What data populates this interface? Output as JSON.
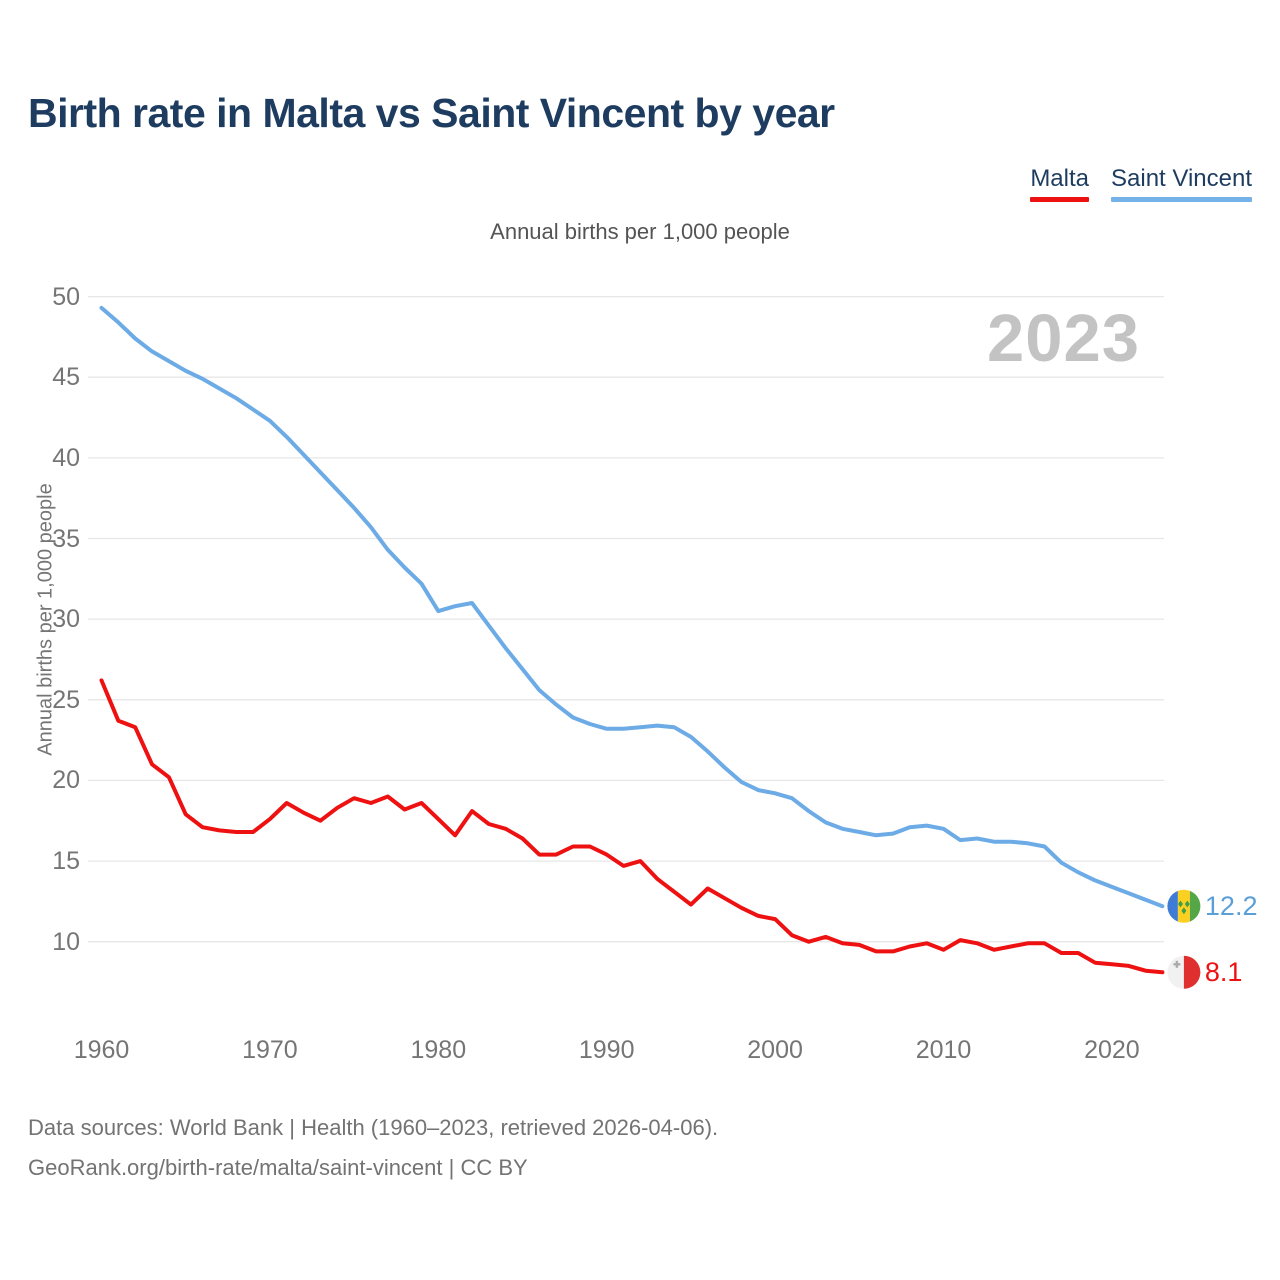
{
  "header": {
    "title": "Birth rate in Malta vs Saint Vincent by year",
    "subtitle": "Annual births per 1,000 people"
  },
  "legend": {
    "items": [
      {
        "label": "Malta",
        "color": "#ee1111"
      },
      {
        "label": "Saint Vincent",
        "color": "#74b2e8"
      }
    ]
  },
  "watermark": "2023",
  "chart_data": {
    "type": "line",
    "title": "Birth rate in Malta vs Saint Vincent by year",
    "subtitle": "Annual births per 1,000 people",
    "ylabel": "Annual births per 1,000 people",
    "xlabel": "",
    "x": [
      1960,
      1961,
      1962,
      1963,
      1964,
      1965,
      1966,
      1967,
      1968,
      1969,
      1970,
      1971,
      1972,
      1973,
      1974,
      1975,
      1976,
      1977,
      1978,
      1979,
      1980,
      1981,
      1982,
      1983,
      1984,
      1985,
      1986,
      1987,
      1988,
      1989,
      1990,
      1991,
      1992,
      1993,
      1994,
      1995,
      1996,
      1997,
      1998,
      1999,
      2000,
      2001,
      2002,
      2003,
      2004,
      2005,
      2006,
      2007,
      2008,
      2009,
      2010,
      2011,
      2012,
      2013,
      2014,
      2015,
      2016,
      2017,
      2018,
      2019,
      2020,
      2021,
      2022,
      2023
    ],
    "series": [
      {
        "name": "Malta",
        "color": "#ee1111",
        "end_label": "8.1",
        "flag": "malta",
        "values": [
          26.2,
          23.7,
          23.3,
          21.0,
          20.2,
          17.9,
          17.1,
          16.9,
          16.8,
          16.8,
          17.6,
          18.6,
          18.0,
          17.5,
          18.3,
          18.9,
          18.6,
          19.0,
          18.2,
          18.6,
          17.6,
          16.6,
          18.1,
          17.3,
          17.0,
          16.4,
          15.4,
          15.4,
          15.9,
          15.9,
          15.4,
          14.7,
          15.0,
          13.9,
          13.1,
          12.3,
          13.3,
          12.7,
          12.1,
          11.6,
          11.4,
          10.4,
          10.0,
          10.3,
          9.9,
          9.8,
          9.4,
          9.4,
          9.7,
          9.9,
          9.5,
          10.1,
          9.9,
          9.5,
          9.7,
          9.9,
          9.9,
          9.3,
          9.3,
          8.7,
          8.6,
          8.5,
          8.2,
          8.1
        ]
      },
      {
        "name": "Saint Vincent",
        "color": "#6cabe6",
        "end_label": "12.2",
        "flag": "saint-vincent",
        "values": [
          49.3,
          48.4,
          47.4,
          46.6,
          46.0,
          45.4,
          44.9,
          44.3,
          43.7,
          43.0,
          42.3,
          41.3,
          40.2,
          39.1,
          38.0,
          36.9,
          35.7,
          34.3,
          33.2,
          32.2,
          30.5,
          30.8,
          31.0,
          29.6,
          28.2,
          26.9,
          25.6,
          24.7,
          23.9,
          23.5,
          23.2,
          23.2,
          23.3,
          23.4,
          23.3,
          22.7,
          21.8,
          20.8,
          19.9,
          19.4,
          19.2,
          18.9,
          18.1,
          17.4,
          17.0,
          16.8,
          16.6,
          16.7,
          17.1,
          17.2,
          17.0,
          16.3,
          16.4,
          16.2,
          16.2,
          16.1,
          15.9,
          14.9,
          14.3,
          13.8,
          13.4,
          13.0,
          12.6,
          12.2
        ]
      }
    ],
    "y_ticks": [
      50,
      45,
      40,
      35,
      30,
      25,
      20,
      15,
      10
    ],
    "x_ticks": [
      1960,
      1970,
      1980,
      1990,
      2000,
      2010,
      2020
    ],
    "ylim": [
      7.0,
      51.5
    ],
    "grid": "horizontal",
    "legend_position": "top-right",
    "end_label_colors": {
      "Malta": "#ee1111",
      "Saint Vincent": "#5b9fd8"
    }
  },
  "footer": {
    "line1": "Data sources: World Bank | Health (1960–2023, retrieved 2026-04-06).",
    "line2": "GeoRank.org/birth-rate/malta/saint-vincent | CC BY"
  }
}
